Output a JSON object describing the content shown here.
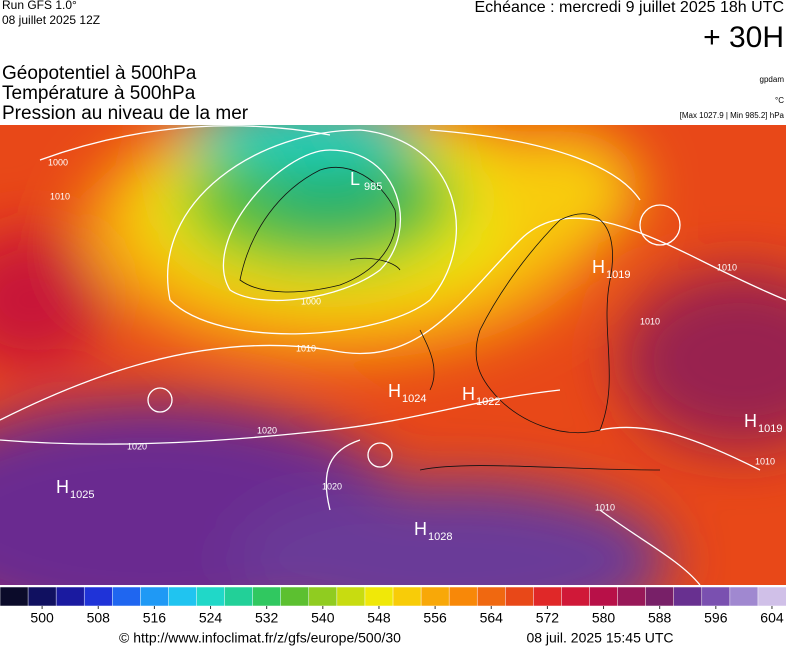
{
  "header": {
    "run": "Run GFS 1.0°",
    "run_date": "08 juillet 2025 12Z",
    "echeance": "Echéance : mercredi 9 juillet 2025 18h UTC",
    "lead": "+ 30H"
  },
  "titles": [
    "Géopotentiel à 500hPa",
    "Température à 500hPa",
    "Pression au niveau de la mer"
  ],
  "units": [
    "gpdam",
    "°C",
    "[Max 1027.9 | Min 985.2] hPa"
  ],
  "centers": [
    {
      "letter": "L",
      "value": 985
    },
    {
      "letter": "H",
      "value": 1019
    },
    {
      "letter": "H",
      "value": 1024
    },
    {
      "letter": "H",
      "value": 1022
    },
    {
      "letter": "H",
      "value": 1019
    },
    {
      "letter": "H",
      "value": 1025
    },
    {
      "letter": "H",
      "value": 1028
    }
  ],
  "isobar_labels": [
    "1000",
    "1010",
    "1000",
    "1010",
    "1020",
    "1020",
    "1020",
    "1010",
    "1010",
    "1010",
    "1010"
  ],
  "colorbar": {
    "lim": [
      494,
      606
    ],
    "ticks": [
      500,
      508,
      516,
      524,
      532,
      540,
      548,
      556,
      564,
      572,
      580,
      588,
      596,
      604
    ],
    "colors": [
      "#0b0b2a",
      "#101060",
      "#1a1aa0",
      "#1f33d8",
      "#1f66f0",
      "#1f99f5",
      "#20c4f0",
      "#20d8c8",
      "#22d098",
      "#30c860",
      "#5cc030",
      "#90cc20",
      "#c8dc10",
      "#f0e808",
      "#f8cc08",
      "#f8a808",
      "#f88808",
      "#f06810",
      "#e84818",
      "#e02828",
      "#d01838",
      "#b81048",
      "#981858",
      "#782068",
      "#683090",
      "#7a50b0",
      "#a088d0",
      "#d0c0e8"
    ]
  },
  "footer": {
    "url": "© http://www.infoclimat.fr/z/gfs/europe/500/30",
    "time": "08 juil. 2025 15:45 UTC"
  }
}
